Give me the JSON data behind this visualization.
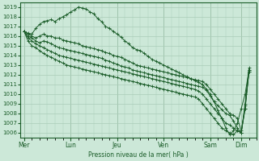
{
  "bg_color": "#cce8d8",
  "grid_color": "#aaccb8",
  "line_color": "#1a5c28",
  "xlabel": "Pression niveau de la mer( hPa )",
  "ylim": [
    1005.5,
    1019.5
  ],
  "yticks": [
    1006,
    1007,
    1008,
    1009,
    1010,
    1011,
    1012,
    1013,
    1014,
    1015,
    1016,
    1017,
    1018,
    1019
  ],
  "xtick_labels": [
    "Mer",
    "Lun",
    "Jeu",
    "Ven",
    "Sam",
    "Dim"
  ],
  "xtick_positions": [
    0,
    12,
    24,
    36,
    48,
    56
  ],
  "xlim": [
    -1,
    60
  ],
  "lines": [
    [
      1016.5,
      1016.3,
      1016.2,
      1016.8,
      1017.2,
      1017.5,
      1017.6,
      1017.7,
      1017.5,
      1017.8,
      1018.0,
      1018.2,
      1018.5,
      1018.7,
      1019.0,
      1018.9,
      1018.8,
      1018.5,
      1018.3,
      1017.8,
      1017.5,
      1017.0,
      1016.8,
      1016.5,
      1016.2,
      1015.9,
      1015.5,
      1015.2,
      1014.8,
      1014.6,
      1014.5,
      1014.2,
      1013.9,
      1013.6,
      1013.4,
      1013.2,
      1013.0,
      1012.8,
      1012.6,
      1012.4,
      1012.2,
      1012.0,
      1011.8,
      1011.6,
      1011.4,
      1011.2,
      1011.0,
      1010.5,
      1010.0,
      1009.2,
      1008.3,
      1007.5,
      1006.5,
      1005.8,
      1006.2,
      1007.0,
      1008.5,
      1010.0,
      1012.5
    ],
    [
      1016.5,
      1016.2,
      1016.0,
      1015.8,
      1016.0,
      1016.2,
      1016.0,
      1016.0,
      1015.8,
      1015.8,
      1015.6,
      1015.5,
      1015.4,
      1015.3,
      1015.2,
      1015.0,
      1014.9,
      1014.8,
      1014.7,
      1014.6,
      1014.5,
      1014.3,
      1014.2,
      1014.0,
      1013.9,
      1013.8,
      1013.6,
      1013.4,
      1013.2,
      1013.0,
      1012.9,
      1012.8,
      1012.7,
      1012.6,
      1012.5,
      1012.4,
      1012.3,
      1012.2,
      1012.1,
      1012.0,
      1011.9,
      1011.8,
      1011.7,
      1011.6,
      1011.5,
      1011.4,
      1011.3,
      1011.0,
      1010.5,
      1010.0,
      1009.5,
      1009.0,
      1008.5,
      1008.0,
      1007.8,
      1007.5,
      1006.2,
      1008.5,
      1012.5
    ],
    [
      1016.5,
      1016.0,
      1015.8,
      1015.5,
      1015.3,
      1015.5,
      1015.4,
      1015.2,
      1015.0,
      1014.8,
      1014.7,
      1014.6,
      1014.5,
      1014.4,
      1014.3,
      1014.2,
      1014.1,
      1014.0,
      1013.9,
      1013.8,
      1013.7,
      1013.5,
      1013.4,
      1013.2,
      1013.1,
      1012.9,
      1012.8,
      1012.7,
      1012.5,
      1012.4,
      1012.3,
      1012.2,
      1012.1,
      1012.0,
      1011.9,
      1011.8,
      1011.7,
      1011.6,
      1011.5,
      1011.4,
      1011.3,
      1011.2,
      1011.1,
      1011.0,
      1010.9,
      1010.8,
      1010.7,
      1010.4,
      1009.8,
      1009.2,
      1008.8,
      1008.4,
      1008.0,
      1007.8,
      1007.2,
      1006.5,
      1006.0,
      1009.0,
      1012.7
    ],
    [
      1016.5,
      1015.8,
      1015.5,
      1015.2,
      1015.0,
      1014.8,
      1014.6,
      1014.4,
      1014.2,
      1014.0,
      1013.9,
      1013.8,
      1013.7,
      1013.6,
      1013.5,
      1013.4,
      1013.3,
      1013.2,
      1013.1,
      1013.0,
      1012.9,
      1012.8,
      1012.7,
      1012.6,
      1012.5,
      1012.4,
      1012.3,
      1012.2,
      1012.1,
      1012.0,
      1011.9,
      1011.8,
      1011.7,
      1011.6,
      1011.5,
      1011.4,
      1011.3,
      1011.2,
      1011.1,
      1011.0,
      1010.9,
      1010.8,
      1010.7,
      1010.6,
      1010.5,
      1010.3,
      1010.0,
      1009.5,
      1009.0,
      1008.5,
      1008.0,
      1007.5,
      1007.0,
      1006.8,
      1006.5,
      1006.2,
      1006.0,
      1008.8,
      1012.3
    ],
    [
      1016.5,
      1015.5,
      1015.0,
      1014.8,
      1014.5,
      1014.2,
      1014.0,
      1013.8,
      1013.6,
      1013.4,
      1013.2,
      1013.0,
      1012.9,
      1012.8,
      1012.7,
      1012.6,
      1012.5,
      1012.4,
      1012.3,
      1012.2,
      1012.1,
      1012.0,
      1011.9,
      1011.8,
      1011.7,
      1011.6,
      1011.5,
      1011.4,
      1011.3,
      1011.2,
      1011.1,
      1011.0,
      1010.9,
      1010.8,
      1010.7,
      1010.6,
      1010.5,
      1010.4,
      1010.3,
      1010.2,
      1010.1,
      1010.0,
      1009.9,
      1009.8,
      1009.7,
      1009.5,
      1009.0,
      1008.5,
      1008.0,
      1007.5,
      1007.0,
      1006.5,
      1006.2,
      1006.0,
      1005.8,
      1006.2,
      1006.0,
      1008.5,
      1012.3
    ]
  ]
}
